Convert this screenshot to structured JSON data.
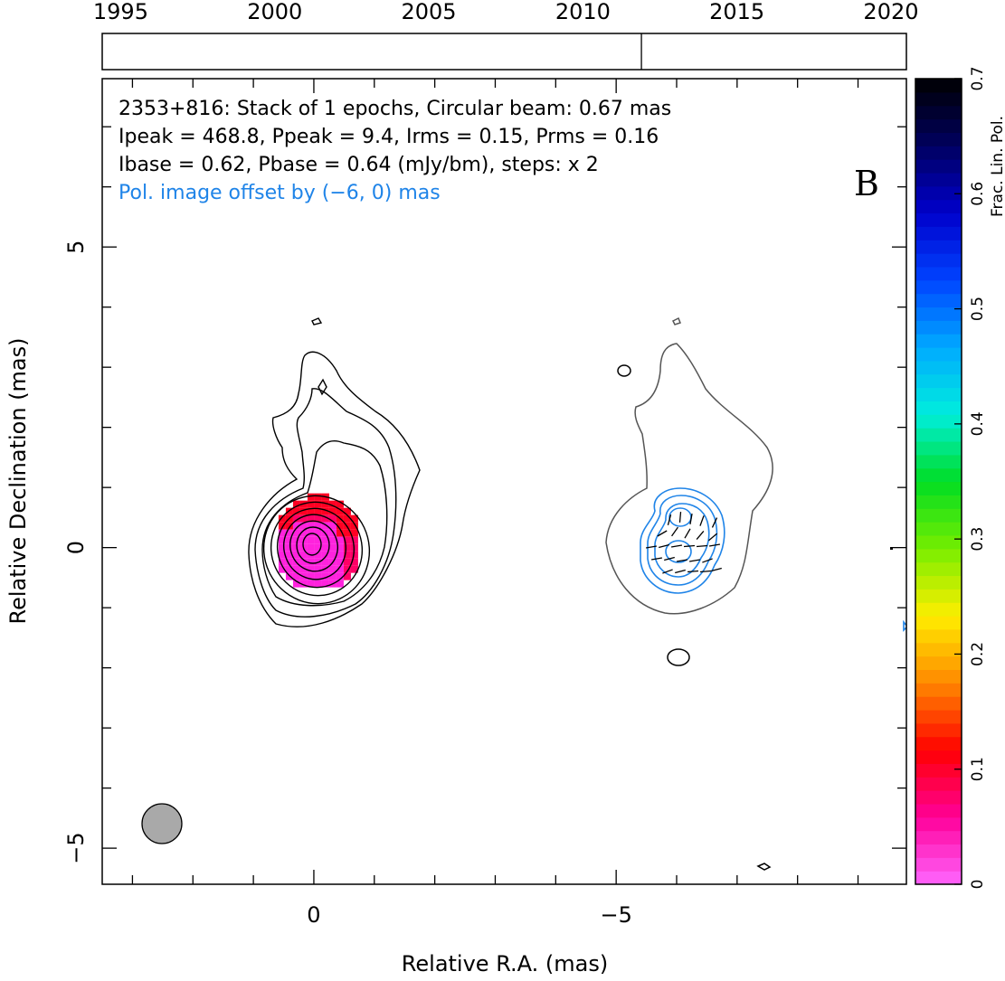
{
  "chart_data": {
    "type": "contour-map",
    "source": "2353+816",
    "header_lines": [
      "2353+816: Stack of 1 epochs, Circular beam: 0.67 mas",
      "Ipeak = 468.8, Ppeak = 9.4, Irms = 0.15, Prms = 0.16",
      "Ibase = 0.62, Pbase = 0.64 (mJy/bm), steps: x 2"
    ],
    "offset_note": "Pol. image offset by (−6, 0) mas",
    "panel_label": "B",
    "beam_mas": 0.67,
    "ipeak": 468.8,
    "ppeak": 9.4,
    "irms": 0.15,
    "prms": 0.16,
    "ibase": 0.62,
    "pbase": 0.64,
    "units": "mJy/bm",
    "contour_step": 2,
    "pol_offset_mas": [
      -6,
      0
    ],
    "xlabel": "Relative R.A. (mas)",
    "ylabel": "Relative Declination (mas)",
    "x_ticks": [
      0,
      -5
    ],
    "x_tick_labels": [
      "0",
      "−5"
    ],
    "y_ticks": [
      5,
      0,
      -5
    ],
    "y_tick_labels": [
      "5",
      "0",
      "−5"
    ],
    "xlim": [
      3.5,
      -9.8
    ],
    "ylim": [
      -5.6,
      7.8
    ],
    "timeline": {
      "years": [
        1995,
        2000,
        2005,
        2010,
        2015,
        2020
      ],
      "year_labels": [
        "1995",
        "2000",
        "2005",
        "2010",
        "2015",
        "2020"
      ],
      "range": [
        1994.4,
        2020.5
      ],
      "epochs": [
        2011.9
      ]
    },
    "colorbar": {
      "label": "Frac. Lin. Pol.",
      "range": [
        0,
        0.7
      ],
      "ticks": [
        0,
        0.1,
        0.2,
        0.3,
        0.4,
        0.5,
        0.6,
        0.7
      ],
      "tick_labels": [
        "0",
        "0.1",
        "0.2",
        "0.3",
        "0.4",
        "0.5",
        "0.6",
        "0.7"
      ],
      "colors": [
        "#ff66ff",
        "#ff0099",
        "#ff0000",
        "#ff8800",
        "#ffee00",
        "#77ee00",
        "#00dd22",
        "#00eedd",
        "#00aaff",
        "#0044ff",
        "#0000cc",
        "#000060",
        "#000000"
      ]
    },
    "core_frac_pol": 0.02,
    "colors": {
      "stokes_i": "#000000",
      "pol_contours": "#1f84e8",
      "offset_i_contour": "#555555",
      "beam_fill": "#a9a9a9"
    }
  }
}
